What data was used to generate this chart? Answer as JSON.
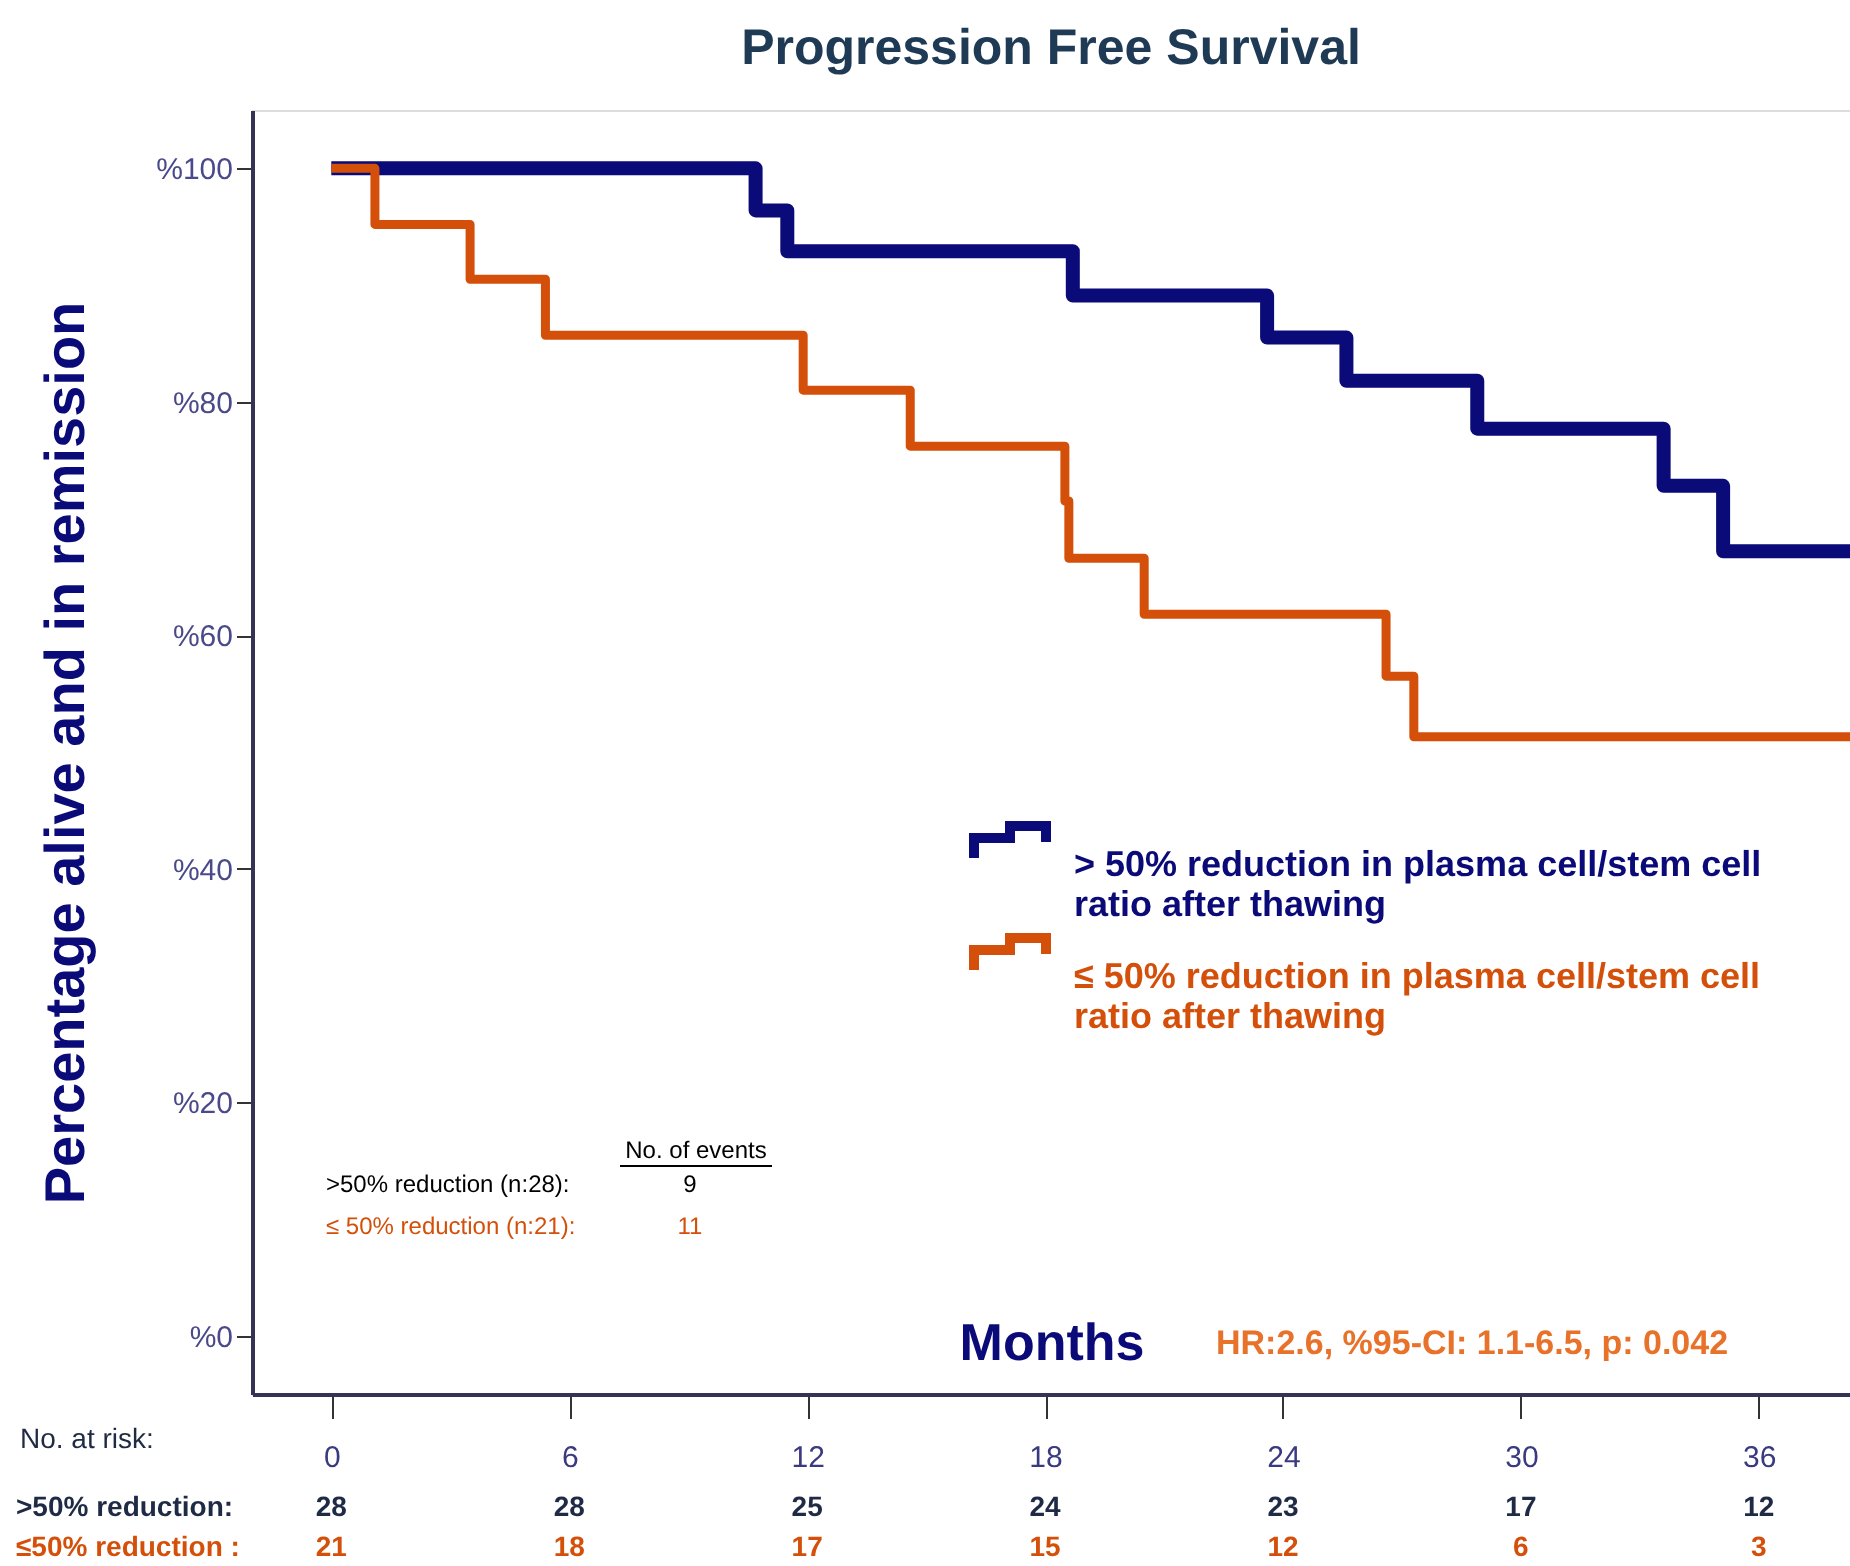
{
  "chart_data": {
    "type": "step",
    "title": "Progression Free Survival",
    "xlabel": "Months",
    "ylabel": "Percentage alive and in remission",
    "series": [
      {
        "name": "> 50% reduction in plasma cell/stem cell ratio after thawing",
        "color": "#0a0a78",
        "x": [
          0,
          10.7,
          11.5,
          18.7,
          23.6,
          25.6,
          28.9,
          33.6,
          35.1,
          38.3
        ],
        "values": [
          100,
          96.4,
          92.9,
          89.1,
          85.5,
          81.8,
          77.7,
          72.8,
          67.2,
          67.2
        ]
      },
      {
        "name": "≤ 50% reduction in plasma cell/stem cell ratio after thawing",
        "color": "#d4500a",
        "x": [
          0,
          1.1,
          3.5,
          5.4,
          11.9,
          14.6,
          18.5,
          18.6,
          20.5,
          26.6,
          27.3,
          38.3
        ],
        "values": [
          100,
          95.2,
          90.5,
          85.7,
          81.0,
          76.2,
          71.5,
          66.6,
          61.8,
          56.5,
          51.3,
          51.3
        ]
      }
    ],
    "xlim": [
      -2,
      38.3
    ],
    "xticks": [
      0,
      6,
      12,
      18,
      24,
      30,
      36
    ],
    "ylim": [
      -5,
      105
    ],
    "yticks": [
      {
        "value": 0,
        "label": "%0"
      },
      {
        "value": 20,
        "label": "%20"
      },
      {
        "value": 40,
        "label": "%40"
      },
      {
        "value": 60,
        "label": "%60"
      },
      {
        "value": 80,
        "label": "%80"
      },
      {
        "value": 100,
        "label": "%100"
      }
    ],
    "grid": false,
    "legend": "right",
    "line_style": "solid",
    "annotations": [
      "No. of events",
      ">50% reduction (n:28):",
      "9",
      "≤ 50% reduction (n:21):",
      "11",
      "HR:2.6, %95-CI: 1.1-6.5, p: 0.042",
      "No. at risk:",
      ">50% reduction:",
      "≤50% reduction :",
      "28",
      "28",
      "25",
      "24",
      "23",
      "17",
      "12",
      "21",
      "18",
      "17",
      "15",
      "12",
      "6",
      "3"
    ]
  }
}
